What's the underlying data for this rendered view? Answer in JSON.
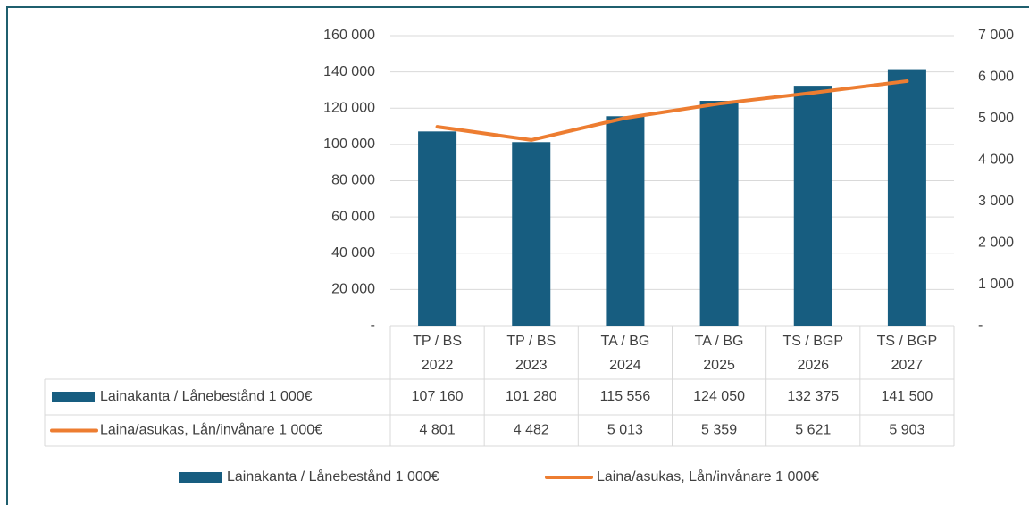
{
  "chart_data": {
    "type": "bar",
    "categories": [
      [
        "TP / BS",
        "2022"
      ],
      [
        "TP / BS",
        "2023"
      ],
      [
        "TA / BG",
        "2024"
      ],
      [
        "TA / BG",
        "2025"
      ],
      [
        "TS / BGP",
        "2026"
      ],
      [
        "TS / BGP",
        "2027"
      ]
    ],
    "series": [
      {
        "name": "Lainakanta /  Lånebestånd 1 000€",
        "type": "bar",
        "color": "#175d80",
        "values": [
          107160,
          101280,
          115556,
          124050,
          132375,
          141500
        ],
        "value_labels": [
          "107 160",
          "101 280",
          "115 556",
          "124 050",
          "132 375",
          "141 500"
        ]
      },
      {
        "name": "Laina/asukas, Lån/invånare 1 000€",
        "type": "line",
        "axis": "y2",
        "color": "#ed7d31",
        "values": [
          4801,
          4482,
          5013,
          5359,
          5621,
          5903
        ],
        "value_labels": [
          "4 801",
          "4 482",
          "5 013",
          "5 359",
          "5 621",
          "5 903"
        ]
      }
    ],
    "ylim": [
      0,
      160000
    ],
    "yticks": [
      {
        "value": 0,
        "label": "-"
      },
      {
        "value": 20000,
        "label": "20 000"
      },
      {
        "value": 40000,
        "label": "40 000"
      },
      {
        "value": 60000,
        "label": "60 000"
      },
      {
        "value": 80000,
        "label": "80 000"
      },
      {
        "value": 100000,
        "label": "100 000"
      },
      {
        "value": 120000,
        "label": "120 000"
      },
      {
        "value": 140000,
        "label": "140 000"
      },
      {
        "value": 160000,
        "label": "160 000"
      }
    ],
    "y2lim": [
      0,
      7000
    ],
    "y2ticks": [
      {
        "value": 0,
        "label": "-"
      },
      {
        "value": 1000,
        "label": "1 000"
      },
      {
        "value": 2000,
        "label": "2 000"
      },
      {
        "value": 3000,
        "label": "3 000"
      },
      {
        "value": 4000,
        "label": "4 000"
      },
      {
        "value": 5000,
        "label": "5 000"
      },
      {
        "value": 6000,
        "label": "6 000"
      },
      {
        "value": 7000,
        "label": "7 000"
      }
    ],
    "grid": true,
    "legend": "bottom"
  }
}
